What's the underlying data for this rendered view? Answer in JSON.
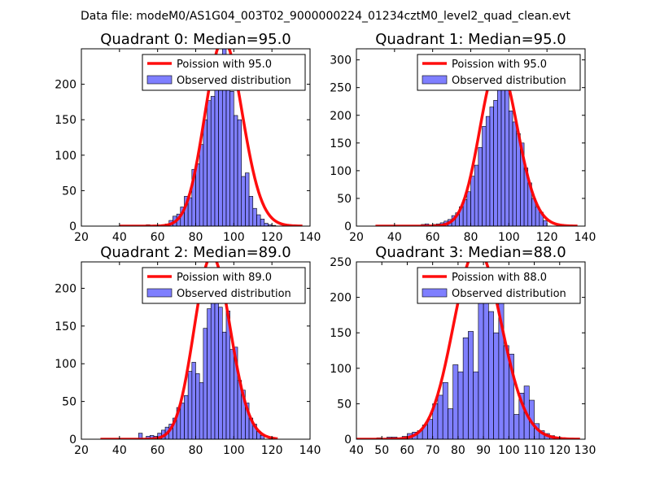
{
  "figure_title": "Data file: modeM0/AS1G04_003T02_9000000224_01234cztM0_level2_quad_clean.evt",
  "chart_data": [
    {
      "type": "bar",
      "title": "Quadrant 0: Median=95.0",
      "bin_width": 2,
      "xlim": [
        20,
        140
      ],
      "ylim": [
        0,
        250
      ],
      "xticks": [
        20,
        40,
        60,
        80,
        100,
        120,
        140
      ],
      "yticks": [
        0,
        50,
        100,
        150,
        200
      ],
      "hist_x": [
        54,
        60,
        62,
        64,
        66,
        68,
        70,
        72,
        74,
        76,
        78,
        80,
        82,
        84,
        86,
        88,
        90,
        92,
        94,
        96,
        98,
        100,
        102,
        104,
        106,
        108,
        110,
        112,
        114,
        116,
        118,
        120
      ],
      "hist_y": [
        2,
        1,
        2,
        3,
        8,
        14,
        17,
        27,
        42,
        40,
        80,
        88,
        115,
        150,
        177,
        183,
        196,
        205,
        258,
        197,
        190,
        156,
        150,
        70,
        75,
        42,
        25,
        16,
        10,
        4,
        2,
        1
      ],
      "poisson_mean": 95.0,
      "poisson_scale": 6420,
      "poisson_range": [
        40,
        136
      ],
      "legend": [
        "Poission with 95.0",
        "Observed distribution"
      ]
    },
    {
      "type": "bar",
      "title": "Quadrant 1: Median=95.0",
      "bin_width": 2,
      "xlim": [
        20,
        140
      ],
      "ylim": [
        0,
        320
      ],
      "xticks": [
        20,
        40,
        60,
        80,
        100,
        120,
        140
      ],
      "yticks": [
        0,
        50,
        100,
        150,
        200,
        250,
        300
      ],
      "hist_x": [
        54,
        56,
        60,
        62,
        64,
        66,
        68,
        70,
        72,
        74,
        76,
        78,
        80,
        82,
        84,
        86,
        88,
        90,
        92,
        94,
        96,
        98,
        100,
        102,
        104,
        106,
        108,
        110,
        112,
        114,
        116,
        118
      ],
      "hist_y": [
        3,
        4,
        3,
        4,
        6,
        9,
        12,
        19,
        24,
        35,
        48,
        62,
        90,
        110,
        142,
        180,
        198,
        215,
        227,
        255,
        300,
        257,
        208,
        188,
        167,
        150,
        105,
        78,
        50,
        35,
        25,
        10
      ],
      "poisson_mean": 95.0,
      "poisson_scale": 7180,
      "poisson_range": [
        30,
        136
      ],
      "legend": [
        "Poission with 95.0",
        "Observed distribution"
      ]
    },
    {
      "type": "bar",
      "title": "Quadrant 2: Median=89.0",
      "bin_width": 2,
      "xlim": [
        20,
        140
      ],
      "ylim": [
        0,
        235
      ],
      "xticks": [
        20,
        40,
        60,
        80,
        100,
        120,
        140
      ],
      "yticks": [
        0,
        50,
        100,
        150,
        200
      ],
      "hist_x": [
        50,
        54,
        56,
        58,
        60,
        62,
        64,
        66,
        68,
        70,
        72,
        74,
        76,
        78,
        80,
        82,
        84,
        86,
        88,
        90,
        92,
        94,
        96,
        98,
        100,
        102,
        104,
        106,
        108,
        110,
        112,
        114
      ],
      "hist_y": [
        8,
        4,
        5,
        4,
        8,
        12,
        16,
        20,
        28,
        42,
        48,
        58,
        90,
        102,
        87,
        75,
        147,
        173,
        207,
        213,
        175,
        142,
        170,
        119,
        122,
        78,
        65,
        48,
        28,
        20,
        10,
        5
      ],
      "poisson_mean": 89.0,
      "poisson_scale": 5750,
      "poisson_range": [
        30,
        123
      ],
      "legend": [
        "Poission with 89.0",
        "Observed distribution"
      ]
    },
    {
      "type": "bar",
      "title": "Quadrant 3: Median=88.0",
      "bin_width": 2,
      "xlim": [
        40,
        130
      ],
      "ylim": [
        0,
        250
      ],
      "xticks": [
        40,
        50,
        60,
        70,
        80,
        90,
        100,
        110,
        120,
        130
      ],
      "yticks": [
        0,
        50,
        100,
        150,
        200,
        250
      ],
      "hist_x": [
        48,
        52,
        54,
        56,
        58,
        60,
        62,
        64,
        66,
        68,
        70,
        72,
        74,
        76,
        78,
        80,
        82,
        84,
        86,
        88,
        90,
        92,
        94,
        96,
        98,
        100,
        102,
        104,
        106,
        108,
        110,
        112,
        114,
        116,
        118,
        120
      ],
      "hist_y": [
        2,
        3,
        3,
        2,
        4,
        8,
        10,
        12,
        20,
        28,
        50,
        62,
        80,
        43,
        105,
        95,
        143,
        152,
        95,
        202,
        215,
        180,
        150,
        208,
        132,
        120,
        35,
        65,
        75,
        55,
        22,
        12,
        8,
        5,
        3,
        2
      ],
      "poisson_mean": 88.0,
      "poisson_scale": 6310,
      "poisson_range": [
        40,
        128
      ],
      "legend": [
        "Poission with 88.0",
        "Observed distribution"
      ]
    }
  ]
}
